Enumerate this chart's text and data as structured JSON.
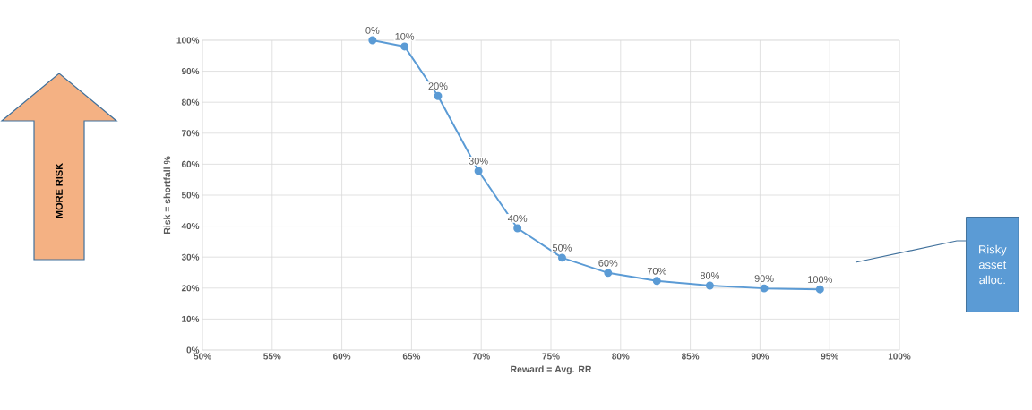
{
  "chart_data": {
    "type": "line",
    "xlabel": "Reward = Avg. RR",
    "ylabel": "Risk = shortfall %",
    "x": [
      62.2,
      64.5,
      66.9,
      69.8,
      72.6,
      75.8,
      79.1,
      82.6,
      86.4,
      90.3,
      94.3
    ],
    "series": [
      {
        "color": "#5b9bd5",
        "values": [
          100,
          98,
          82,
          57.8,
          39.3,
          29.8,
          24.9,
          22.3,
          20.8,
          19.9,
          19.6
        ]
      }
    ],
    "marker": "circle",
    "line_style": "solid",
    "grid": true,
    "xlim": [
      50,
      100
    ],
    "xticks": [
      {
        "value": 50,
        "label": "50%"
      },
      {
        "value": 55,
        "label": "55%"
      },
      {
        "value": 60,
        "label": "60%"
      },
      {
        "value": 65,
        "label": "65%"
      },
      {
        "value": 70,
        "label": "70%"
      },
      {
        "value": 75,
        "label": "75%"
      },
      {
        "value": 80,
        "label": "80%"
      },
      {
        "value": 85,
        "label": "85%"
      },
      {
        "value": 90,
        "label": "90%"
      },
      {
        "value": 95,
        "label": "95%"
      },
      {
        "value": 100,
        "label": "100%"
      }
    ],
    "ylim": [
      0,
      100
    ],
    "yticks": [
      {
        "value": 0,
        "label": "0%"
      },
      {
        "value": 10,
        "label": "10%"
      },
      {
        "value": 20,
        "label": "20%"
      },
      {
        "value": 30,
        "label": "30%"
      },
      {
        "value": 40,
        "label": "40%"
      },
      {
        "value": 50,
        "label": "50%"
      },
      {
        "value": 60,
        "label": "60%"
      },
      {
        "value": 70,
        "label": "70%"
      },
      {
        "value": 80,
        "label": "80%"
      },
      {
        "value": 90,
        "label": "90%"
      },
      {
        "value": 100,
        "label": "100%"
      }
    ],
    "annotations": [
      "MORE RISK",
      "Risky asset alloc.",
      {
        "text": "0%",
        "x": 62.2,
        "y": 100
      },
      {
        "text": "10%",
        "x": 64.5,
        "y": 98
      },
      {
        "text": "20%",
        "x": 66.9,
        "y": 82
      },
      {
        "text": "30%",
        "x": 69.8,
        "y": 57.8
      },
      {
        "text": "40%",
        "x": 72.6,
        "y": 39.3
      },
      {
        "text": "50%",
        "x": 75.8,
        "y": 29.8
      },
      {
        "text": "60%",
        "x": 79.1,
        "y": 24.9
      },
      {
        "text": "70%",
        "x": 82.6,
        "y": 22.3
      },
      {
        "text": "80%",
        "x": 86.4,
        "y": 20.8
      },
      {
        "text": "90%",
        "x": 90.3,
        "y": 19.9
      },
      {
        "text": "100%",
        "x": 94.3,
        "y": 19.6
      }
    ]
  }
}
